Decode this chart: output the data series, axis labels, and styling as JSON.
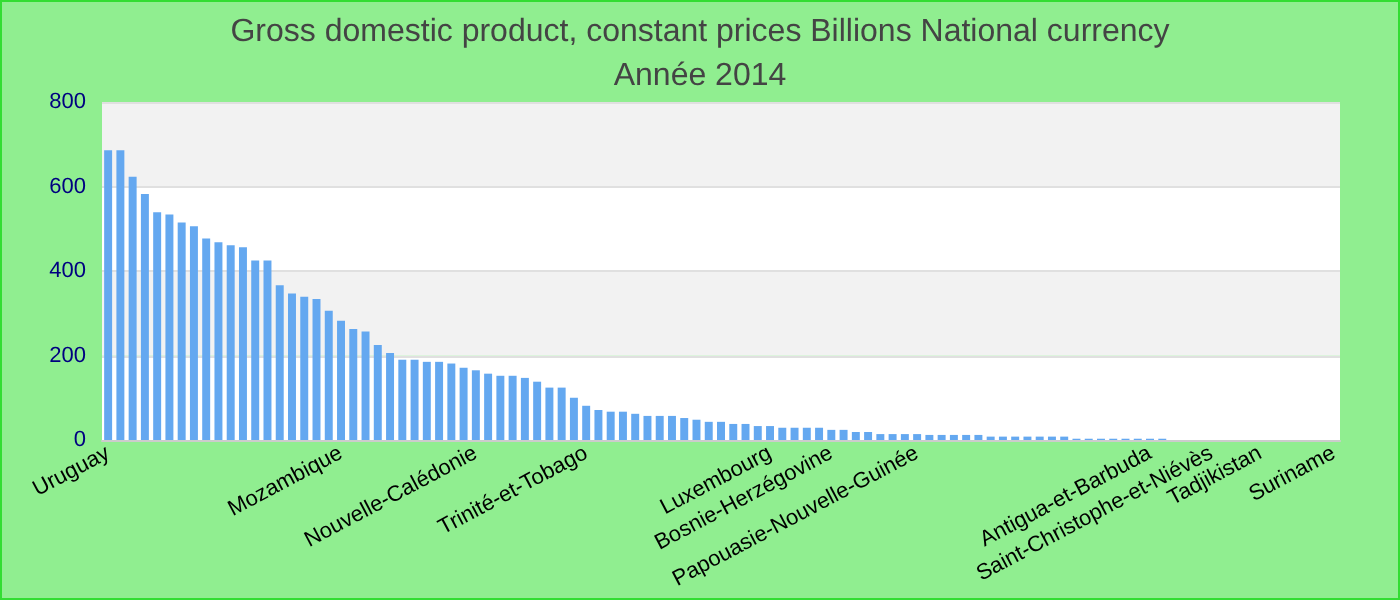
{
  "chart_data": {
    "type": "bar",
    "title": "Gross domestic product, constant prices Billions National currency",
    "subtitle": "Année 2014",
    "categories": [
      "Uruguay",
      null,
      null,
      null,
      null,
      null,
      null,
      null,
      null,
      null,
      null,
      null,
      null,
      null,
      null,
      null,
      null,
      null,
      null,
      "Mozambique",
      null,
      null,
      null,
      null,
      null,
      null,
      null,
      null,
      null,
      null,
      "Nouvelle-Calédonie",
      null,
      null,
      null,
      null,
      null,
      null,
      null,
      null,
      "Trinité-et-Tobago",
      null,
      null,
      null,
      null,
      null,
      null,
      null,
      null,
      null,
      null,
      null,
      null,
      null,
      null,
      "Luxembourg",
      null,
      null,
      null,
      null,
      "Bosnie-Herzégovine",
      null,
      null,
      null,
      null,
      null,
      null,
      "Papouasie-Nouvelle-Guinée",
      null,
      null,
      null,
      null,
      null,
      null,
      null,
      null,
      null,
      null,
      null,
      null,
      null,
      null,
      null,
      null,
      null,
      null,
      "Antigua-et-Barbuda",
      null,
      null,
      null,
      null,
      "Saint-Christophe-et-Niévès",
      null,
      null,
      null,
      "Tadjikistan",
      null,
      null,
      null,
      null,
      null,
      "Suriname"
    ],
    "values": [
      686,
      686,
      623,
      582,
      539,
      534,
      515,
      506,
      477,
      468,
      461,
      456,
      425,
      425,
      366,
      347,
      339,
      334,
      306,
      282,
      263,
      257,
      225,
      206,
      190,
      190,
      185,
      185,
      181,
      171,
      165,
      157,
      152,
      152,
      147,
      138,
      124,
      124,
      100,
      81,
      71,
      67,
      67,
      62,
      57,
      57,
      57,
      52,
      48,
      43,
      43,
      38,
      38,
      33,
      33,
      29,
      29,
      29,
      29,
      24,
      24,
      19,
      19,
      14,
      14,
      14,
      14,
      12,
      12,
      12,
      12,
      12,
      8,
      8,
      8,
      8,
      8,
      8,
      8,
      3,
      3,
      3,
      3,
      3,
      3,
      3,
      3,
      0,
      0,
      0,
      0,
      0,
      0,
      0,
      0,
      0,
      0,
      0,
      0,
      0,
      0
    ],
    "color": "#64a8f0",
    "ylim": [
      0,
      800
    ],
    "yticks": [
      0,
      200,
      400,
      600,
      800
    ],
    "grid": "y"
  }
}
